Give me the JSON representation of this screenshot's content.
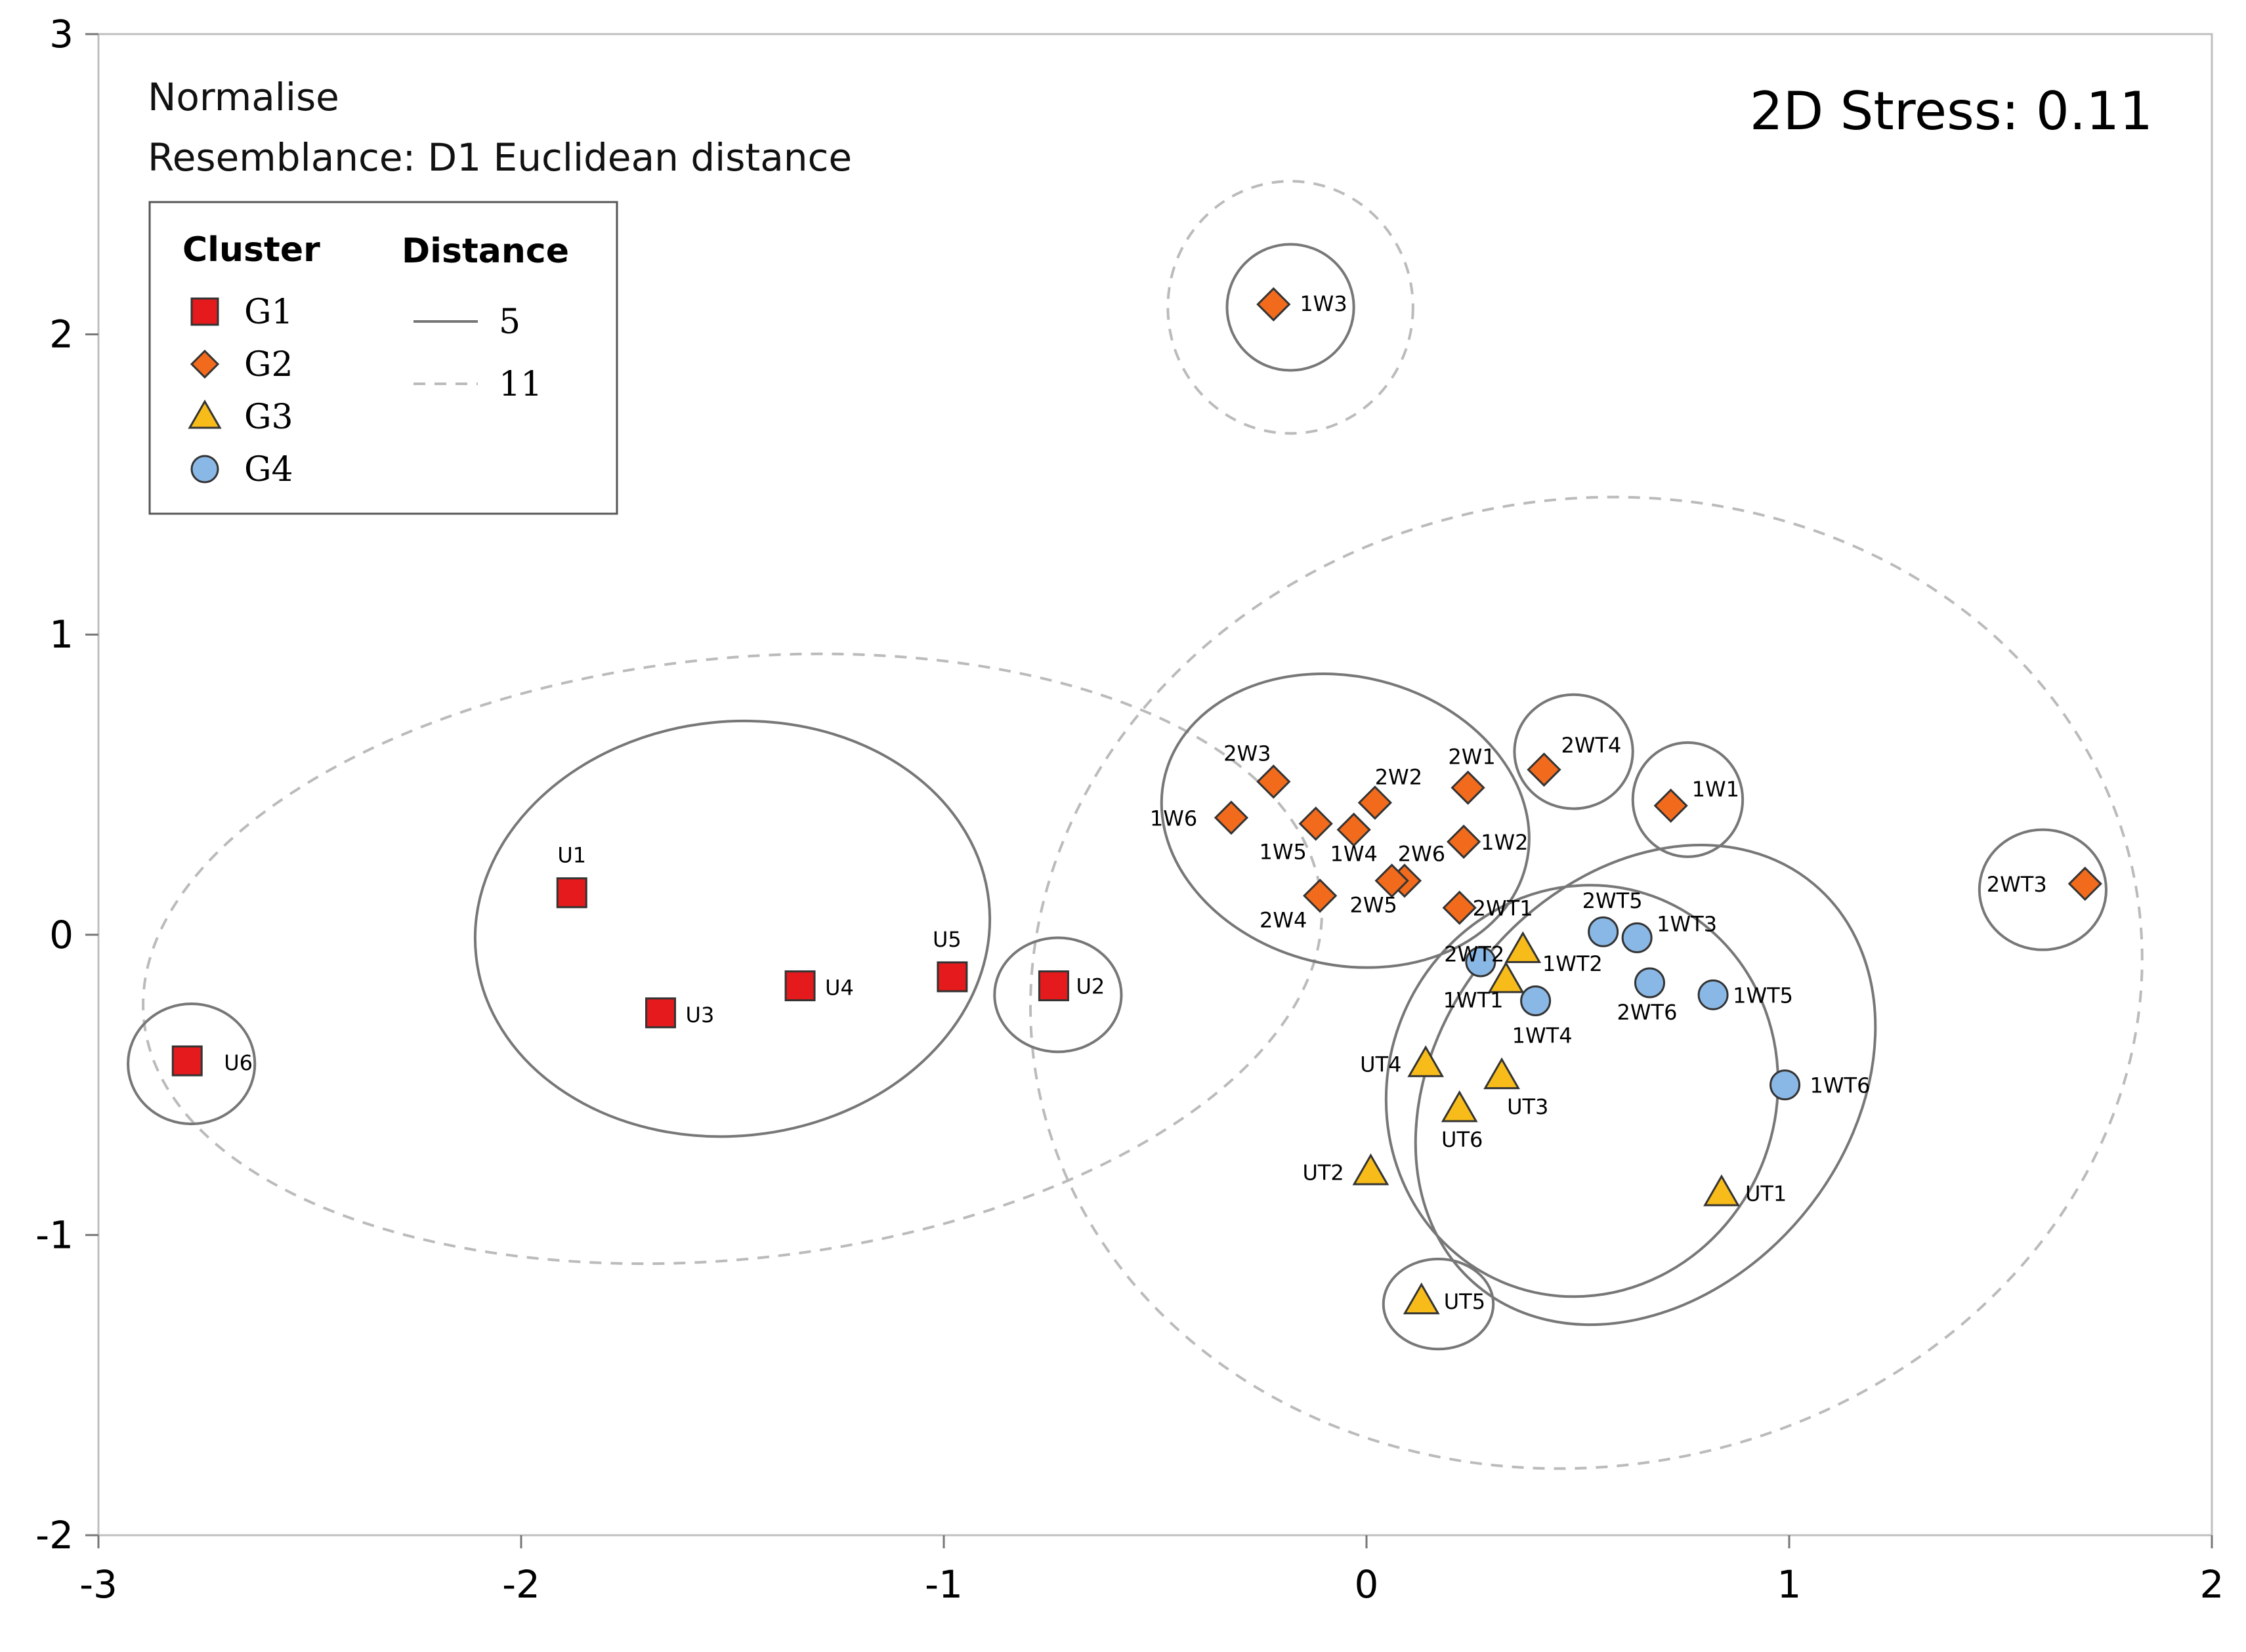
{
  "chart_data": {
    "type": "scatter",
    "title": "2D Stress: 0.11",
    "annotations": [
      "Normalise",
      "Resemblance: D1 Euclidean distance"
    ],
    "xlabel": "",
    "ylabel": "",
    "xlim": [
      -3,
      2
    ],
    "ylim": [
      -2,
      3
    ],
    "x_ticks": [
      -3,
      -2,
      -1,
      0,
      1,
      2
    ],
    "y_ticks": [
      -2,
      -1,
      0,
      1,
      2,
      3
    ],
    "x_tick_labels": [
      "-3",
      "-2",
      "-1",
      "0",
      "1",
      "2"
    ],
    "y_tick_labels": [
      "-2",
      "-1",
      "0",
      "1",
      "2",
      "3"
    ],
    "grid": false,
    "legend": {
      "position": "top-left",
      "cluster_title": "Cluster",
      "distance_title": "Distance",
      "groups": [
        {
          "name": "G1",
          "marker": "square",
          "color": "#e41a1c"
        },
        {
          "name": "G2",
          "marker": "diamond",
          "color": "#f26b1d"
        },
        {
          "name": "G3",
          "marker": "triangle",
          "color": "#f8bc1a"
        },
        {
          "name": "G4",
          "marker": "circle",
          "color": "#8ab8e6"
        }
      ],
      "distances": [
        {
          "label": "5",
          "style": "solid",
          "color": "#777777"
        },
        {
          "label": "11",
          "style": "dashed",
          "color": "#bbbbbb"
        }
      ]
    },
    "series": [
      {
        "name": "G1",
        "points": [
          {
            "label": "U1",
            "x": -1.88,
            "y": 0.14
          },
          {
            "label": "U2",
            "x": -0.74,
            "y": -0.17
          },
          {
            "label": "U3",
            "x": -1.67,
            "y": -0.26
          },
          {
            "label": "U4",
            "x": -1.34,
            "y": -0.17
          },
          {
            "label": "U5",
            "x": -0.98,
            "y": -0.14
          },
          {
            "label": "U6",
            "x": -2.79,
            "y": -0.42
          }
        ]
      },
      {
        "name": "G2",
        "points": [
          {
            "label": "1W3",
            "x": -0.22,
            "y": 2.1
          },
          {
            "label": "2W3",
            "x": -0.22,
            "y": 0.51
          },
          {
            "label": "2W2",
            "x": 0.02,
            "y": 0.44
          },
          {
            "label": "2W1",
            "x": 0.24,
            "y": 0.49
          },
          {
            "label": "2WT4",
            "x": 0.42,
            "y": 0.55
          },
          {
            "label": "1W1",
            "x": 0.72,
            "y": 0.43
          },
          {
            "label": "1W6",
            "x": -0.32,
            "y": 0.39
          },
          {
            "label": "1W5",
            "x": -0.12,
            "y": 0.37
          },
          {
            "label": "1W4",
            "x": -0.03,
            "y": 0.35
          },
          {
            "label": "2W6",
            "x": 0.09,
            "y": 0.18
          },
          {
            "label": "1W2",
            "x": 0.23,
            "y": 0.31
          },
          {
            "label": "2W4",
            "x": -0.11,
            "y": 0.13
          },
          {
            "label": "2W5",
            "x": 0.06,
            "y": 0.18
          },
          {
            "label": "2WT1",
            "x": 0.22,
            "y": 0.09
          },
          {
            "label": "2WT3",
            "x": 1.7,
            "y": 0.17
          }
        ]
      },
      {
        "name": "G3",
        "points": [
          {
            "label": "2WT2",
            "x": 0.37,
            "y": -0.05
          },
          {
            "label": "1WT1",
            "x": 0.33,
            "y": -0.15
          },
          {
            "label": "UT4",
            "x": 0.14,
            "y": -0.43
          },
          {
            "label": "UT3",
            "x": 0.32,
            "y": -0.47
          },
          {
            "label": "UT6",
            "x": 0.22,
            "y": -0.58
          },
          {
            "label": "UT2",
            "x": 0.01,
            "y": -0.79
          },
          {
            "label": "UT1",
            "x": 0.84,
            "y": -0.86
          },
          {
            "label": "UT5",
            "x": 0.13,
            "y": -1.22
          }
        ]
      },
      {
        "name": "G4",
        "points": [
          {
            "label": "2WT5",
            "x": 0.56,
            "y": 0.01
          },
          {
            "label": "1WT3",
            "x": 0.64,
            "y": -0.01
          },
          {
            "label": "1WT2",
            "x": 0.27,
            "y": -0.09
          },
          {
            "label": "1WT4",
            "x": 0.4,
            "y": -0.22
          },
          {
            "label": "2WT6",
            "x": 0.67,
            "y": -0.16
          },
          {
            "label": "1WT5",
            "x": 0.82,
            "y": -0.2
          },
          {
            "label": "1WT6",
            "x": 0.99,
            "y": -0.5
          }
        ]
      }
    ],
    "contours": [
      {
        "distance": "11",
        "style": "dashed",
        "cx": -1.5,
        "cy": -0.08,
        "rx": 1.4,
        "ry": 1.0,
        "rot": -6
      },
      {
        "distance": "11",
        "style": "dashed",
        "cx": 0.52,
        "cy": -0.16,
        "rx": 1.32,
        "ry": 1.61,
        "rot": -10
      },
      {
        "distance": "11",
        "style": "dashed",
        "cx": -0.18,
        "cy": 2.09,
        "rx": 0.29,
        "ry": 0.42,
        "rot": 0
      },
      {
        "distance": "5",
        "style": "solid",
        "cx": -1.5,
        "cy": 0.02,
        "rx": 0.61,
        "ry": 0.69,
        "rot": -6
      },
      {
        "distance": "5",
        "style": "solid",
        "cx": -2.78,
        "cy": -0.43,
        "rx": 0.15,
        "ry": 0.2,
        "rot": 0
      },
      {
        "distance": "5",
        "style": "solid",
        "cx": -0.73,
        "cy": -0.2,
        "rx": 0.15,
        "ry": 0.19,
        "rot": 0
      },
      {
        "distance": "5",
        "style": "solid",
        "cx": -0.18,
        "cy": 2.09,
        "rx": 0.15,
        "ry": 0.21,
        "rot": 0
      },
      {
        "distance": "5",
        "style": "solid",
        "cx": -0.05,
        "cy": 0.38,
        "rx": 0.44,
        "ry": 0.48,
        "rot": 14
      },
      {
        "distance": "5",
        "style": "solid",
        "cx": 0.49,
        "cy": 0.61,
        "rx": 0.14,
        "ry": 0.19,
        "rot": 0
      },
      {
        "distance": "5",
        "style": "solid",
        "cx": 0.76,
        "cy": 0.45,
        "rx": 0.13,
        "ry": 0.19,
        "rot": 0
      },
      {
        "distance": "5",
        "style": "solid",
        "cx": 1.6,
        "cy": 0.15,
        "rx": 0.15,
        "ry": 0.2,
        "rot": 0
      },
      {
        "distance": "5",
        "style": "solid",
        "cx": 0.66,
        "cy": -0.5,
        "rx": 0.62,
        "ry": 0.68,
        "rot": -50
      },
      {
        "distance": "5",
        "style": "solid",
        "cx": 0.51,
        "cy": -0.52,
        "rx": 0.46,
        "ry": 0.69,
        "rot": 20
      },
      {
        "distance": "5",
        "style": "solid",
        "cx": 0.17,
        "cy": -1.23,
        "rx": 0.13,
        "ry": 0.15,
        "rot": 0
      }
    ]
  }
}
